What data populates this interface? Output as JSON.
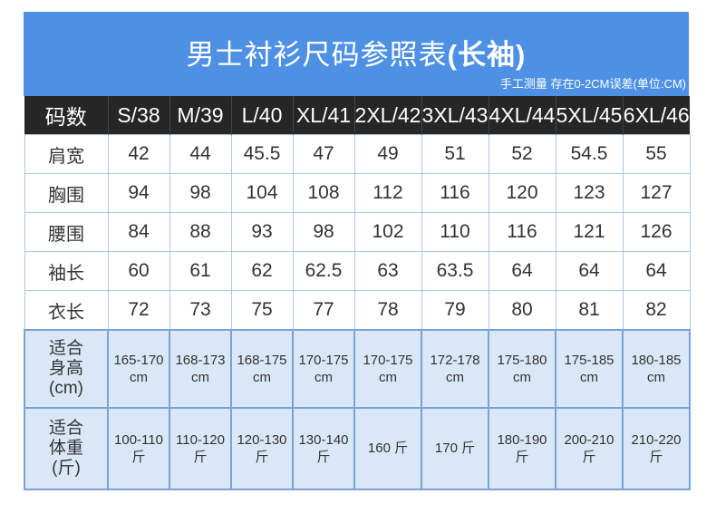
{
  "banner": {
    "title_main": "男士衬衫尺码参照表",
    "title_suffix": "(长袖)",
    "note": "手工测量 存在0-2CM误差(单位:CM)"
  },
  "chart_data": {
    "type": "table",
    "title": "男士衬衫尺码参照表(长袖)",
    "note": "手工测量 存在0-2CM误差(单位:CM)",
    "unit": "CM",
    "columns": [
      "码数",
      "S/38",
      "M/39",
      "L/40",
      "XL/41",
      "2XL/42",
      "3XL/43",
      "4XL/44",
      "5XL/45",
      "6XL/46"
    ],
    "rows": [
      {
        "key": "shoulder-width",
        "label": "肩宽",
        "band": false,
        "values": [
          "42",
          "44",
          "45.5",
          "47",
          "49",
          "51",
          "52",
          "54.5",
          "55"
        ]
      },
      {
        "key": "chest",
        "label": "胸围",
        "band": false,
        "values": [
          "94",
          "98",
          "104",
          "108",
          "112",
          "116",
          "120",
          "123",
          "127"
        ]
      },
      {
        "key": "waist",
        "label": "腰围",
        "band": false,
        "values": [
          "84",
          "88",
          "93",
          "98",
          "102",
          "110",
          "116",
          "121",
          "126"
        ]
      },
      {
        "key": "sleeve-length",
        "label": "袖长",
        "band": false,
        "values": [
          "60",
          "61",
          "62",
          "62.5",
          "63",
          "63.5",
          "64",
          "64",
          "64"
        ]
      },
      {
        "key": "garment-length",
        "label": "衣长",
        "band": false,
        "values": [
          "72",
          "73",
          "75",
          "77",
          "78",
          "79",
          "80",
          "81",
          "82"
        ]
      },
      {
        "key": "fit-height",
        "label": "适合\n身高\n(cm)",
        "band": true,
        "values": [
          "165-170\ncm",
          "168-173\ncm",
          "168-175\ncm",
          "170-175\ncm",
          "170-175\ncm",
          "172-178\ncm",
          "175-180\ncm",
          "175-185\ncm",
          "180-185\ncm"
        ]
      },
      {
        "key": "fit-weight",
        "label": "适合\n体重\n(斤)",
        "band": true,
        "values": [
          "100-110\n斤",
          "110-120\n斤",
          "120-130\n斤",
          "130-140\n斤",
          "160 斤",
          "170 斤",
          "180-190\n斤",
          "200-210\n斤",
          "210-220\n斤"
        ]
      }
    ],
    "colors": {
      "banner_blue": "#4e91e4",
      "header_dark": "#262626",
      "band_blue": "#d9e7f6",
      "border_light": "#a9c8ea",
      "border_medium": "#78a3d6",
      "text_dark": "#333333",
      "text_white": "#ffffff"
    }
  }
}
